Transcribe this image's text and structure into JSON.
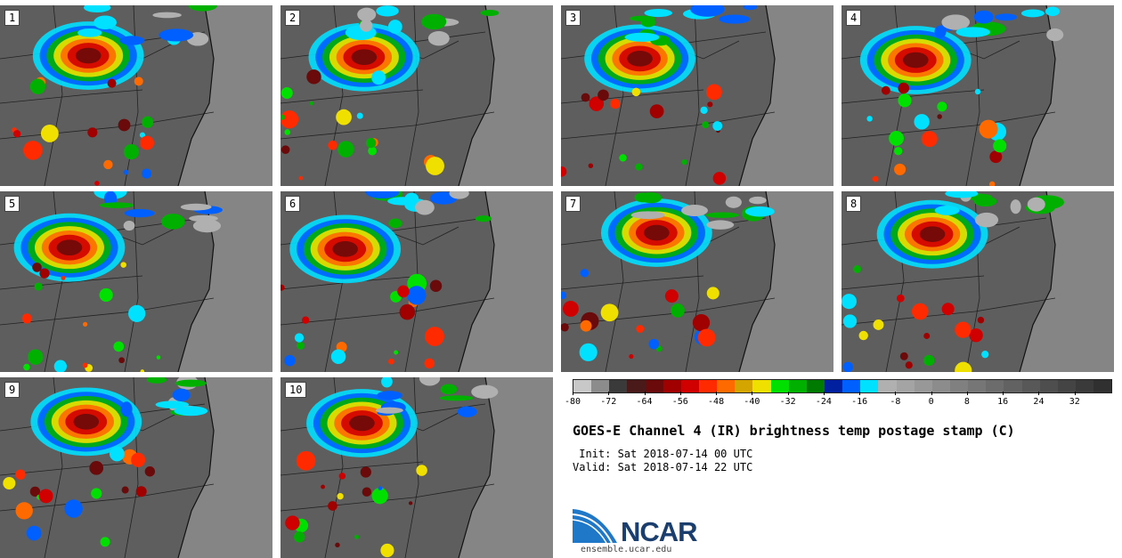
{
  "panels": [
    {
      "label": "1"
    },
    {
      "label": "2"
    },
    {
      "label": "3"
    },
    {
      "label": "4"
    },
    {
      "label": "5"
    },
    {
      "label": "6"
    },
    {
      "label": "7"
    },
    {
      "label": "8"
    },
    {
      "label": "9"
    },
    {
      "label": "10"
    }
  ],
  "colorbar": {
    "colors": [
      "#c8c8c8",
      "#8c8c8c",
      "#3a3a3a",
      "#4a1a1a",
      "#6a0a0a",
      "#a00000",
      "#d00000",
      "#ff2a00",
      "#ff6a00",
      "#d4a400",
      "#f0e000",
      "#00e000",
      "#00b000",
      "#007a00",
      "#0020a0",
      "#0060ff",
      "#00e0ff",
      "#b0b0b0",
      "#a4a4a4",
      "#989898",
      "#8c8c8c",
      "#808080",
      "#767676",
      "#6c6c6c",
      "#626262",
      "#585858",
      "#4e4e4e",
      "#444444",
      "#3a3a3a",
      "#303030"
    ],
    "tick_labels": [
      "-80",
      "-72",
      "-64",
      "-56",
      "-48",
      "-40",
      "-32",
      "-24",
      "-16",
      "-8",
      "0",
      "8",
      "16",
      "24",
      "32"
    ]
  },
  "title": "GOES-E Channel 4 (IR) brightness temp postage stamp (C)",
  "init": " Init: Sat 2018-07-14 00 UTC",
  "valid": "Valid: Sat 2018-07-14 22 UTC",
  "logo": {
    "text": "NCAR",
    "color": "#1f78c8"
  },
  "url": "ensemble.ucar.edu"
}
